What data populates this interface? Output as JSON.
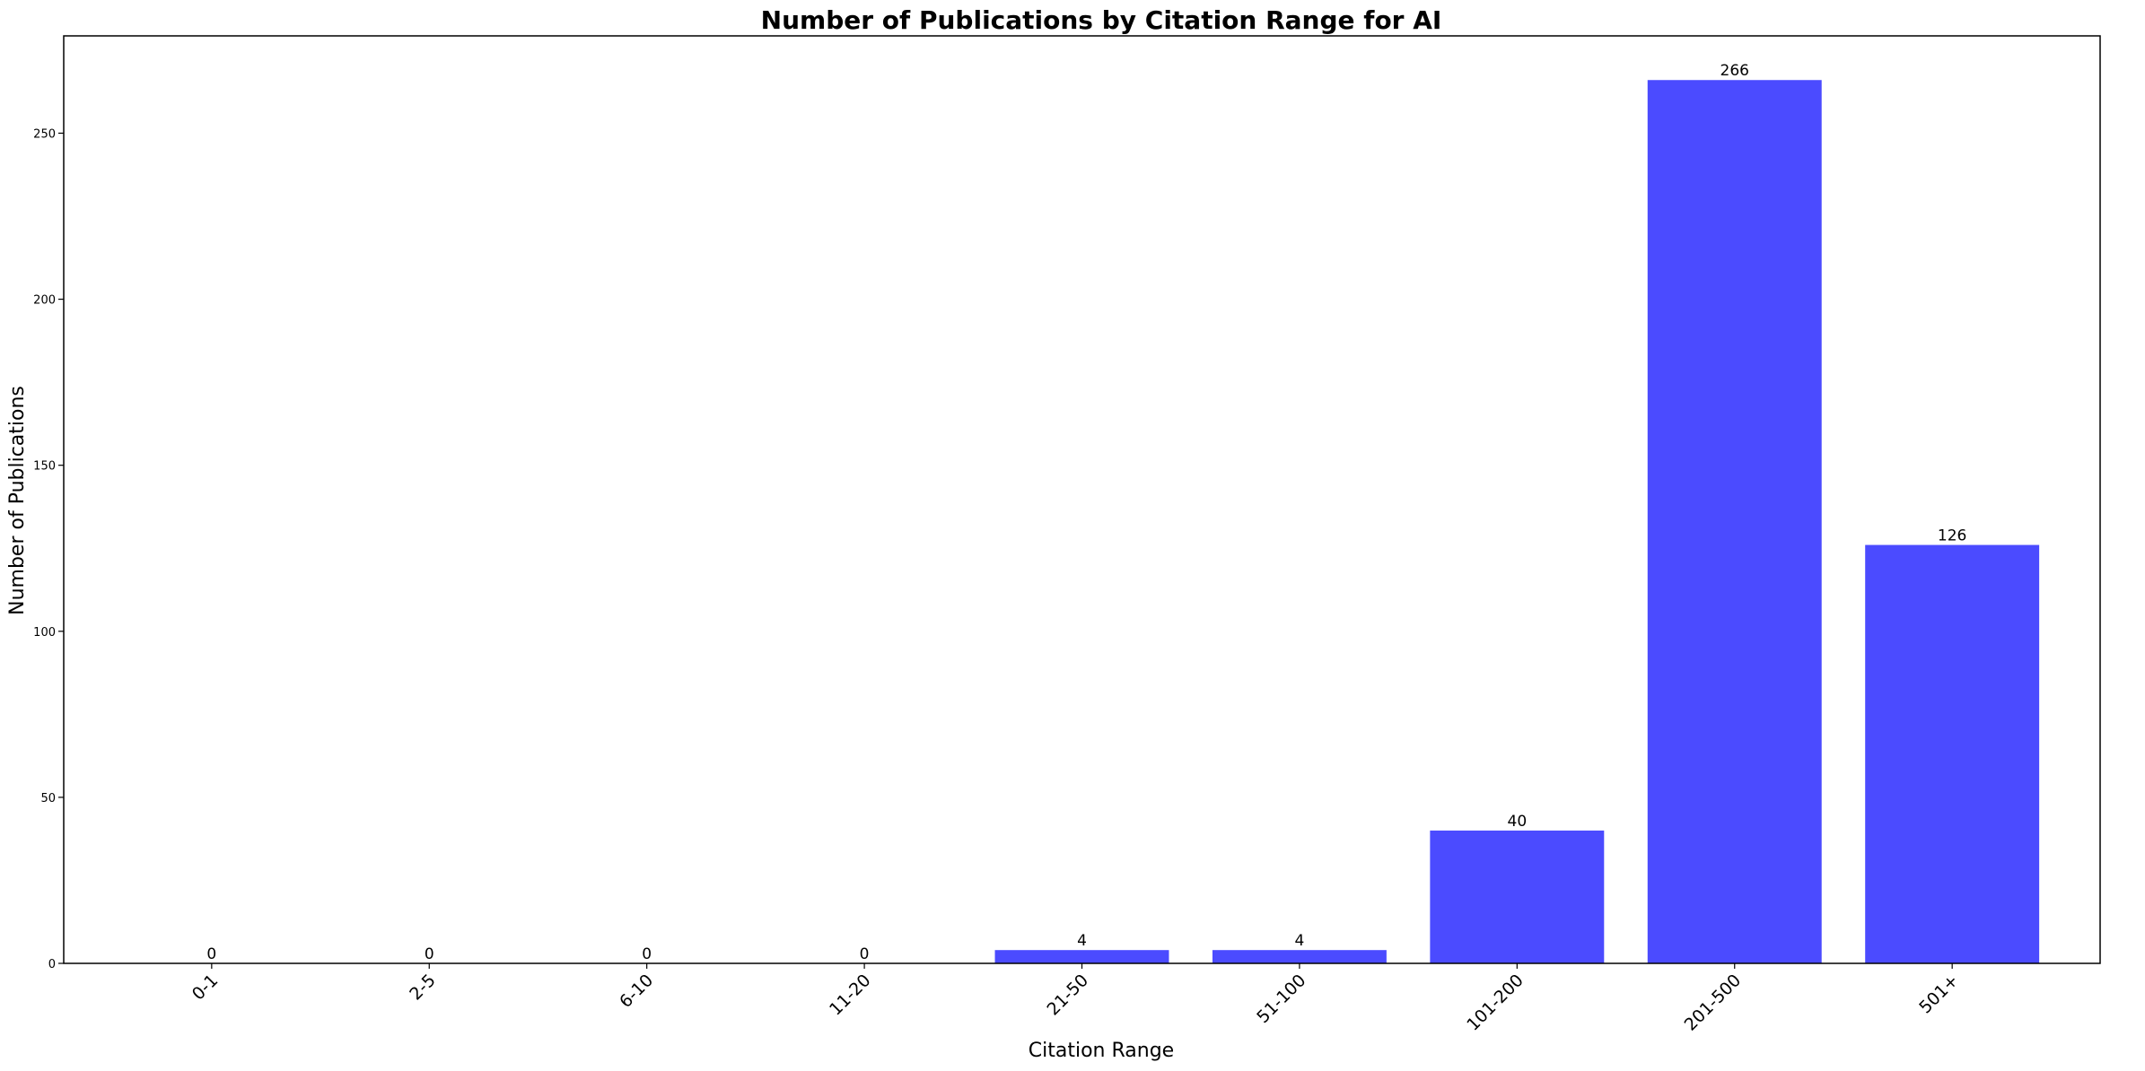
{
  "chart_data": {
    "type": "bar",
    "title": "Number of Publications by Citation Range for AI",
    "xlabel": "Citation Range",
    "ylabel": "Number of Publications",
    "categories": [
      "0-1",
      "2-5",
      "6-10",
      "11-20",
      "21-50",
      "51-100",
      "101-200",
      "201-500",
      "501+"
    ],
    "values": [
      0,
      0,
      0,
      0,
      4,
      4,
      40,
      266,
      126
    ],
    "data_labels": [
      "0",
      "0",
      "0",
      "0",
      "4",
      "4",
      "40",
      "266",
      "126"
    ],
    "yticks": [
      0,
      50,
      100,
      150,
      200,
      250
    ],
    "ytick_labels": [
      "0",
      "50",
      "100",
      "150",
      "200",
      "250"
    ],
    "ylim": [
      0,
      279.3
    ],
    "bar_color": "#4b4bff",
    "grid": false,
    "legend": false
  }
}
